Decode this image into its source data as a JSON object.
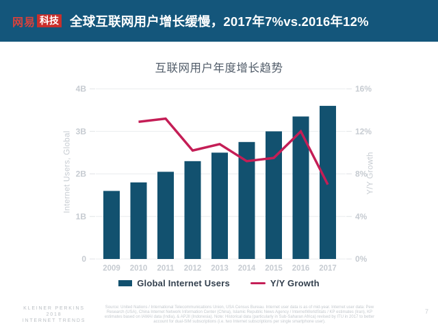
{
  "header": {
    "logo_brand": "网易",
    "logo_sub": "科技",
    "title": "全球互联网用户增长缓慢，2017年7%vs.2016年12%"
  },
  "chart_data": {
    "type": "bar",
    "title": "互联网用户年度增长趋势",
    "categories": [
      "2009",
      "2010",
      "2011",
      "2012",
      "2013",
      "2014",
      "2015",
      "2016",
      "2017"
    ],
    "series": [
      {
        "name": "Global Internet Users",
        "type": "bar",
        "axis": "left",
        "unit": "B",
        "color": "#12516F",
        "values": [
          1.6,
          1.8,
          2.05,
          2.3,
          2.5,
          2.75,
          3.0,
          3.35,
          3.6
        ]
      },
      {
        "name": "Y/Y Growth",
        "type": "line",
        "axis": "right",
        "unit": "%",
        "color": "#C41E56",
        "values": [
          null,
          12.9,
          13.2,
          10.2,
          10.8,
          9.2,
          9.5,
          12.0,
          7.0
        ]
      }
    ],
    "left_axis": {
      "label": "Internet Users, Global",
      "range": [
        0,
        4
      ],
      "ticks": [
        "0",
        "1B",
        "2B",
        "3B",
        "4B"
      ]
    },
    "right_axis": {
      "label": "Y/Y Growth",
      "range": [
        0,
        16
      ],
      "ticks": [
        "0%",
        "4%",
        "8%",
        "12%",
        "16%"
      ]
    },
    "grid": true,
    "legend_position": "bottom"
  },
  "footer": {
    "brand_lines": [
      "KLEINER PERKINS",
      "2018",
      "INTERNET TRENDS"
    ],
    "source": "Source: United Nations / International Telecommunications Union, USA Census Bureau. Internet user data is as of mid-year. Internet user data: Pew Research (USA), China Internet Network Information Center (China), Islamic Republic News Agency / InternetWorldStats / KP estimates (Iran), KP estimates based on IAMAI data (India), & APJII (Indonesia). Note: Historical data (particularly in Sub-Saharan Africa) revised by ITU in 2017 to better account for dual-SIM subscriptions (i.e. two Internet subscriptions per single smartphone user).",
    "page_number": "7"
  },
  "colors": {
    "header_background": "#14567B",
    "logo_red": "#C9302C",
    "bar": "#12516F",
    "line": "#C41E56",
    "axis_text": "#C6CBD1",
    "gridline": "#E9EBED",
    "chart_title_text": "#515C69",
    "legend_text": "#323F4D"
  }
}
